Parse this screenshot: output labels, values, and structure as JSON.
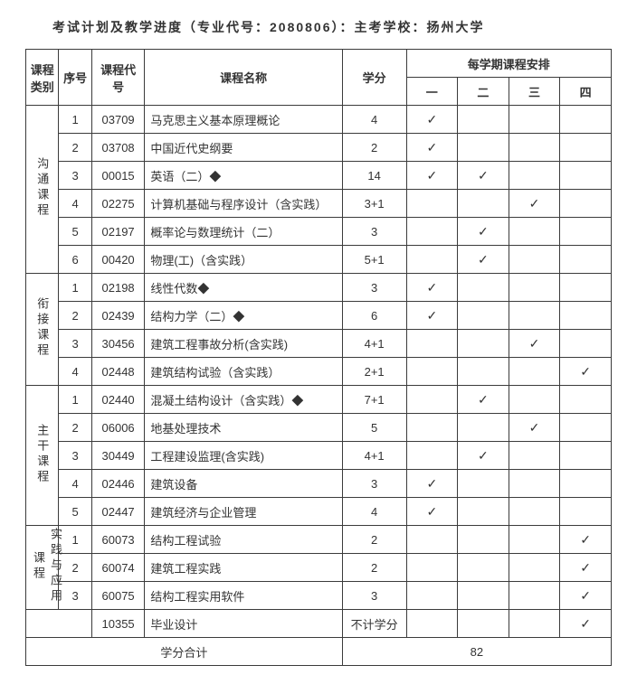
{
  "title": "考试计划及教学进度（专业代号：2080806）：主考学校：扬州大学",
  "headers": {
    "category": "课程类别",
    "index": "序号",
    "code": "课程代号",
    "name": "课程名称",
    "credit": "学分",
    "semester_group": "每学期课程安排",
    "sem1": "一",
    "sem2": "二",
    "sem3": "三",
    "sem4": "四"
  },
  "check_glyph": "✓",
  "groups": [
    {
      "category": "沟通课程",
      "rows": [
        {
          "idx": "1",
          "code": "03709",
          "name": "马克思主义基本原理概论",
          "credit": "4",
          "sem": [
            true,
            false,
            false,
            false
          ]
        },
        {
          "idx": "2",
          "code": "03708",
          "name": "中国近代史纲要",
          "credit": "2",
          "sem": [
            true,
            false,
            false,
            false
          ]
        },
        {
          "idx": "3",
          "code": "00015",
          "name": "英语（二）◆",
          "credit": "14",
          "sem": [
            true,
            true,
            false,
            false
          ]
        },
        {
          "idx": "4",
          "code": "02275",
          "name": "计算机基础与程序设计（含实践）",
          "credit": "3+1",
          "sem": [
            false,
            false,
            true,
            false
          ]
        },
        {
          "idx": "5",
          "code": "02197",
          "name": "概率论与数理统计（二）",
          "credit": "3",
          "sem": [
            false,
            true,
            false,
            false
          ]
        },
        {
          "idx": "6",
          "code": "00420",
          "name": "物理(工)（含实践）",
          "credit": "5+1",
          "sem": [
            false,
            true,
            false,
            false
          ]
        }
      ]
    },
    {
      "category": "衔接课程",
      "rows": [
        {
          "idx": "1",
          "code": "02198",
          "name": "线性代数◆",
          "credit": "3",
          "sem": [
            true,
            false,
            false,
            false
          ]
        },
        {
          "idx": "2",
          "code": "02439",
          "name": "结构力学（二）◆",
          "credit": "6",
          "sem": [
            true,
            false,
            false,
            false
          ]
        },
        {
          "idx": "3",
          "code": "30456",
          "name": "建筑工程事故分析(含实践)",
          "credit": "4+1",
          "sem": [
            false,
            false,
            true,
            false
          ]
        },
        {
          "idx": "4",
          "code": "02448",
          "name": "建筑结构试验（含实践）",
          "credit": "2+1",
          "sem": [
            false,
            false,
            false,
            true
          ]
        }
      ]
    },
    {
      "category": "主干课程",
      "rows": [
        {
          "idx": "1",
          "code": "02440",
          "name": "混凝土结构设计（含实践）◆",
          "credit": "7+1",
          "sem": [
            false,
            true,
            false,
            false
          ]
        },
        {
          "idx": "2",
          "code": "06006",
          "name": "地基处理技术",
          "credit": "5",
          "sem": [
            false,
            false,
            true,
            false
          ]
        },
        {
          "idx": "3",
          "code": "30449",
          "name": "工程建设监理(含实践)",
          "credit": "4+1",
          "sem": [
            false,
            true,
            false,
            false
          ]
        },
        {
          "idx": "4",
          "code": "02446",
          "name": "建筑设备",
          "credit": "3",
          "sem": [
            true,
            false,
            false,
            false
          ]
        },
        {
          "idx": "5",
          "code": "02447",
          "name": "建筑经济与企业管理",
          "credit": "4",
          "sem": [
            true,
            false,
            false,
            false
          ]
        }
      ]
    },
    {
      "category": "实践与应用课程",
      "rows": [
        {
          "idx": "1",
          "code": "60073",
          "name": "结构工程试验",
          "credit": "2",
          "sem": [
            false,
            false,
            false,
            true
          ]
        },
        {
          "idx": "2",
          "code": "60074",
          "name": "建筑工程实践",
          "credit": "2",
          "sem": [
            false,
            false,
            false,
            true
          ]
        },
        {
          "idx": "3",
          "code": "60075",
          "name": "结构工程实用软件",
          "credit": "3",
          "sem": [
            false,
            false,
            false,
            true
          ]
        }
      ]
    }
  ],
  "extra_row": {
    "code": "10355",
    "name": "毕业设计",
    "credit": "不计学分",
    "sem": [
      false,
      false,
      false,
      true
    ]
  },
  "total": {
    "label": "学分合计",
    "value": "82"
  }
}
